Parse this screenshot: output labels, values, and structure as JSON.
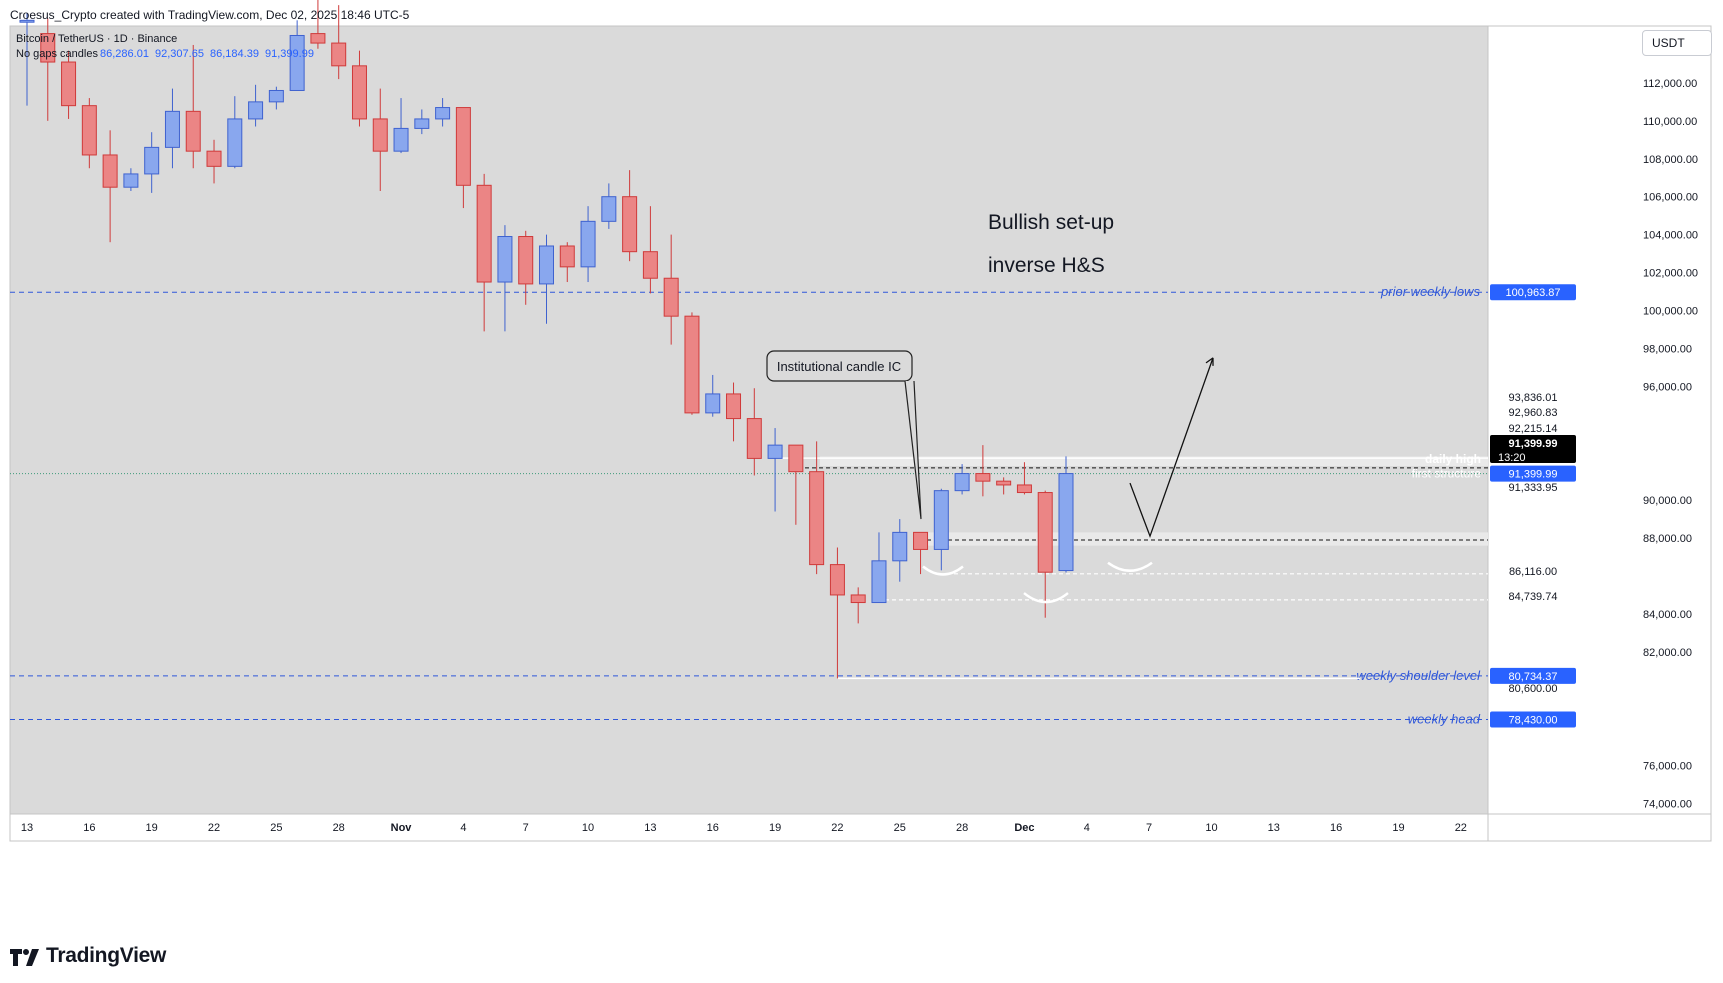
{
  "header": {
    "credit": "Croesus_Crypto created with TradingView.com, Dec 02, 2025 18:46 UTC-5"
  },
  "legend": {
    "symbol": "Bitcoin / TetherUS · 1D · Binance",
    "mode": "No gaps candles",
    "ohlc": [
      "86,286.01",
      "92,307.65",
      "86,184.39",
      "91,399.99"
    ]
  },
  "currency_button": "USDT",
  "brand": {
    "name": "TradingView"
  },
  "colors": {
    "bg": "#dadada",
    "up": "#89a7ee",
    "up_border": "#3f62cf",
    "down": "#eb8585",
    "down_border": "#cf3a3a",
    "blue_line": "#2f57d9",
    "label_bg": "#2962ff"
  },
  "chart_data": {
    "type": "candlestick",
    "ylim": [
      72800,
      115500
    ],
    "y_ticks": [
      74000,
      76000,
      82000,
      84000,
      88000,
      90000,
      96000,
      98000,
      100000,
      102000,
      104000,
      106000,
      108000,
      110000,
      112000
    ],
    "x_ticks": [
      "13",
      "16",
      "19",
      "22",
      "25",
      "28",
      "Nov",
      "4",
      "7",
      "10",
      "13",
      "16",
      "19",
      "22",
      "25",
      "28",
      "Dec",
      "4",
      "7",
      "10",
      "13",
      "16",
      "19",
      "22"
    ],
    "candles": [
      {
        "d": "Oct 13",
        "o": 115200,
        "h": 115700,
        "l": 110800,
        "c": 115300
      },
      {
        "d": "Oct 14",
        "o": 114600,
        "h": 115400,
        "l": 110000,
        "c": 113100
      },
      {
        "d": "Oct 15",
        "o": 113100,
        "h": 113700,
        "l": 110100,
        "c": 110800
      },
      {
        "d": "Oct 16",
        "o": 110800,
        "h": 111200,
        "l": 107500,
        "c": 108200
      },
      {
        "d": "Oct 17",
        "o": 108200,
        "h": 109500,
        "l": 103600,
        "c": 106500
      },
      {
        "d": "Oct 18",
        "o": 106500,
        "h": 107500,
        "l": 106300,
        "c": 107200
      },
      {
        "d": "Oct 19",
        "o": 107200,
        "h": 109400,
        "l": 106200,
        "c": 108600
      },
      {
        "d": "Oct 20",
        "o": 108600,
        "h": 111700,
        "l": 107500,
        "c": 110500
      },
      {
        "d": "Oct 21",
        "o": 110500,
        "h": 114000,
        "l": 107500,
        "c": 108400
      },
      {
        "d": "Oct 22",
        "o": 108400,
        "h": 109000,
        "l": 106700,
        "c": 107600
      },
      {
        "d": "Oct 23",
        "o": 107600,
        "h": 111300,
        "l": 107500,
        "c": 110100
      },
      {
        "d": "Oct 24",
        "o": 110100,
        "h": 111900,
        "l": 109700,
        "c": 111000
      },
      {
        "d": "Oct 25",
        "o": 111000,
        "h": 111800,
        "l": 110600,
        "c": 111600
      },
      {
        "d": "Oct 26",
        "o": 111600,
        "h": 115300,
        "l": 111600,
        "c": 114500
      },
      {
        "d": "Oct 27",
        "o": 114600,
        "h": 116400,
        "l": 113800,
        "c": 114100
      },
      {
        "d": "Oct 28",
        "o": 114100,
        "h": 116100,
        "l": 112200,
        "c": 112900
      },
      {
        "d": "Oct 29",
        "o": 112900,
        "h": 113700,
        "l": 109700,
        "c": 110100
      },
      {
        "d": "Oct 30",
        "o": 110100,
        "h": 111700,
        "l": 106300,
        "c": 108400
      },
      {
        "d": "Oct 31",
        "o": 108400,
        "h": 111200,
        "l": 108300,
        "c": 109600
      },
      {
        "d": "Nov 1",
        "o": 109600,
        "h": 110600,
        "l": 109300,
        "c": 110100
      },
      {
        "d": "Nov 2",
        "o": 110100,
        "h": 111200,
        "l": 109700,
        "c": 110700
      },
      {
        "d": "Nov 3",
        "o": 110700,
        "h": 110700,
        "l": 105400,
        "c": 106600
      },
      {
        "d": "Nov 4",
        "o": 106600,
        "h": 107200,
        "l": 98900,
        "c": 101500
      },
      {
        "d": "Nov 5",
        "o": 101500,
        "h": 104500,
        "l": 98900,
        "c": 103900
      },
      {
        "d": "Nov 6",
        "o": 103900,
        "h": 104200,
        "l": 100300,
        "c": 101400
      },
      {
        "d": "Nov 7",
        "o": 101400,
        "h": 104000,
        "l": 99300,
        "c": 103400
      },
      {
        "d": "Nov 8",
        "o": 103400,
        "h": 103600,
        "l": 101500,
        "c": 102300
      },
      {
        "d": "Nov 9",
        "o": 102300,
        "h": 105500,
        "l": 101500,
        "c": 104700
      },
      {
        "d": "Nov 10",
        "o": 104700,
        "h": 106700,
        "l": 104300,
        "c": 106000
      },
      {
        "d": "Nov 11",
        "o": 106000,
        "h": 107400,
        "l": 102600,
        "c": 103100
      },
      {
        "d": "Nov 12",
        "o": 103100,
        "h": 105500,
        "l": 100900,
        "c": 101700
      },
      {
        "d": "Nov 13",
        "o": 101700,
        "h": 104000,
        "l": 98200,
        "c": 99700
      },
      {
        "d": "Nov 14",
        "o": 99700,
        "h": 99900,
        "l": 94500,
        "c": 94600
      },
      {
        "d": "Nov 15",
        "o": 94600,
        "h": 96600,
        "l": 94400,
        "c": 95600
      },
      {
        "d": "Nov 16",
        "o": 95600,
        "h": 96200,
        "l": 93100,
        "c": 94300
      },
      {
        "d": "Nov 17",
        "o": 94300,
        "h": 95900,
        "l": 91300,
        "c": 92200
      },
      {
        "d": "Nov 18",
        "o": 92200,
        "h": 93800,
        "l": 89400,
        "c": 92900
      },
      {
        "d": "Nov 19",
        "o": 92900,
        "h": 92900,
        "l": 88700,
        "c": 91500
      },
      {
        "d": "Nov 20",
        "o": 91500,
        "h": 93100,
        "l": 86100,
        "c": 86600
      },
      {
        "d": "Nov 21",
        "o": 86600,
        "h": 87500,
        "l": 80600,
        "c": 85000
      },
      {
        "d": "Nov 22",
        "o": 85000,
        "h": 85400,
        "l": 83500,
        "c": 84600
      },
      {
        "d": "Nov 23",
        "o": 84600,
        "h": 88300,
        "l": 84600,
        "c": 86800
      },
      {
        "d": "Nov 24",
        "o": 86800,
        "h": 89000,
        "l": 85700,
        "c": 88300
      },
      {
        "d": "Nov 25",
        "o": 88300,
        "h": 88300,
        "l": 86100,
        "c": 87400
      },
      {
        "d": "Nov 26",
        "o": 87400,
        "h": 90600,
        "l": 86300,
        "c": 90500
      },
      {
        "d": "Nov 27",
        "o": 90500,
        "h": 91900,
        "l": 90300,
        "c": 91400
      },
      {
        "d": "Nov 28",
        "o": 91400,
        "h": 92900,
        "l": 90200,
        "c": 91000
      },
      {
        "d": "Nov 29",
        "o": 91000,
        "h": 91200,
        "l": 90300,
        "c": 90800
      },
      {
        "d": "Nov 30",
        "o": 90800,
        "h": 92000,
        "l": 90300,
        "c": 90400
      },
      {
        "d": "Dec 1",
        "o": 90400,
        "h": 90500,
        "l": 83800,
        "c": 86200
      },
      {
        "d": "Dec 2",
        "o": 86286.01,
        "h": 92307.65,
        "l": 86184.39,
        "c": 91399.99
      }
    ],
    "levels": [
      {
        "name": "prior weekly lows",
        "value": 100963.87,
        "tag": "100,963.87",
        "kind": "blue"
      },
      {
        "name": "weekly shoulder level",
        "value": 80734.37,
        "tag": "80,734.37",
        "kind": "blue"
      },
      {
        "name": "weekly head",
        "value": 78430,
        "tag": "78,430.00",
        "kind": "blue"
      }
    ],
    "annotations": {
      "title1": "Bullish set-up",
      "title2": "inverse H&S",
      "callout": "Institutional candle IC",
      "daily_high": "daily high",
      "first_structure": "first structure"
    },
    "price_labels": [
      "93,836.01",
      "92,960.83",
      "92,215.14",
      "91,333.95",
      "86,116.00",
      "84,739.74",
      "80,600.00"
    ],
    "last_price": {
      "value": 91399.99,
      "label": "91,399.99",
      "countdown": "13:20"
    }
  }
}
